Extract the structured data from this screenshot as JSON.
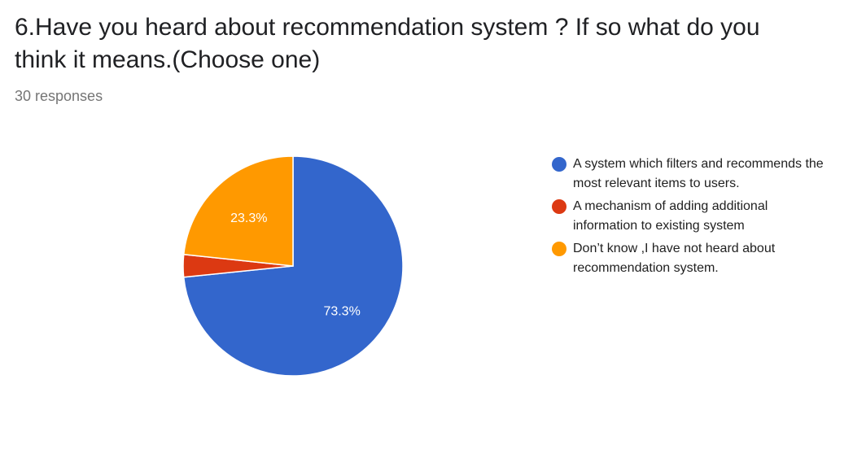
{
  "question": {
    "title": "6.Have you heard about recommendation system ? If so what do you think it means.(Choose one)",
    "responses": "30 responses"
  },
  "chart_data": {
    "type": "pie",
    "title": "6.Have you heard about recommendation system ? If so what do you think it means.(Choose one)",
    "categories": [
      "A system which filters and recommends the most relevant items to users.",
      "A mechanism of adding additional information to existing system",
      "Don’t know ,I have not heard about recommendation system."
    ],
    "values": [
      73.3,
      3.3,
      23.3
    ],
    "data_labels": [
      "73.3%",
      "",
      "23.3%"
    ],
    "colors": [
      "#3366cc",
      "#dc3912",
      "#ff9900"
    ],
    "legend_position": "right"
  },
  "legend": {
    "items": [
      {
        "label": "A system which filters and recommends the most relevant items to users.",
        "color": "#3366cc"
      },
      {
        "label": "A mechanism of adding additional information to existing system",
        "color": "#dc3912"
      },
      {
        "label": "Don’t know ,I have not heard about recommendation system.",
        "color": "#ff9900"
      }
    ]
  }
}
